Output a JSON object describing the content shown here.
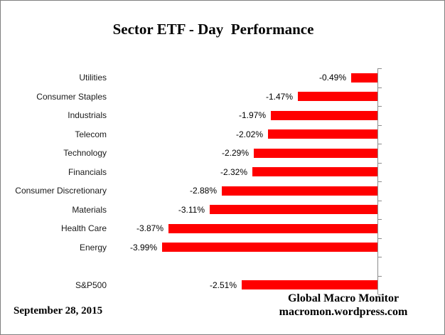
{
  "title": "Sector ETF - Day  Performance",
  "footer": {
    "date": "September 28, 2015",
    "attribution_line1": "Global Macro Monitor",
    "attribution_line2": "macromon.wordpress.com"
  },
  "chart_data": {
    "type": "bar",
    "orientation": "horizontal",
    "title": "Sector ETF - Day  Performance",
    "value_unit": "percent",
    "bar_color": "#ff0000",
    "axis_color": "#8c8c8c",
    "axis_side": "right",
    "categories": [
      "Utilities",
      "Consumer Staples",
      "Industrials",
      "Telecom",
      "Technology",
      "Financials",
      "Consumer Discretionary",
      "Materials",
      "Health Care",
      "Energy"
    ],
    "values": [
      -0.49,
      -1.47,
      -1.97,
      -2.02,
      -2.29,
      -2.32,
      -2.88,
      -3.11,
      -3.87,
      -3.99
    ],
    "display_labels": [
      "-0.49%",
      "-1.47%",
      "-1.97%",
      "-2.02%",
      "-2.29%",
      "-2.32%",
      "-2.88%",
      "-3.11%",
      "-3.87%",
      "-3.99%"
    ],
    "benchmark": {
      "category": "S&P500",
      "value": -2.51,
      "display_label": "-2.51%"
    },
    "xlim": [
      -4.2,
      0
    ],
    "grid": false,
    "legend": false
  }
}
